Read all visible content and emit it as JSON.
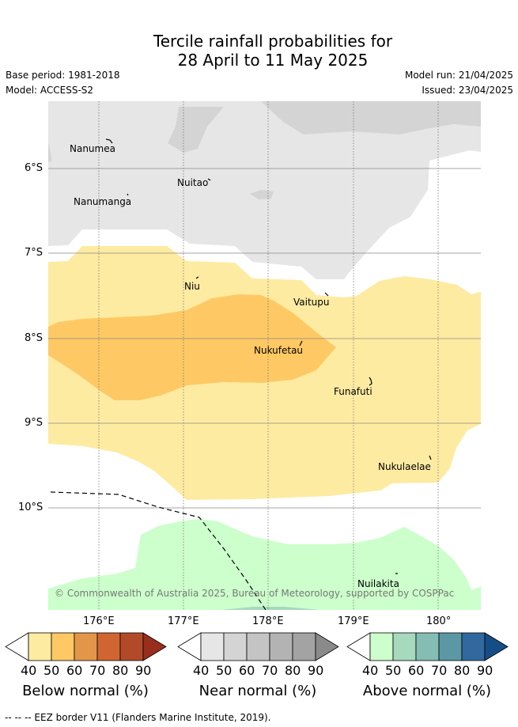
{
  "title": {
    "line1": "Tercile rainfall probabilities for",
    "line2": "28 April to 11 May 2025"
  },
  "meta": {
    "base_period": "Base period: 1981-2018",
    "model": "Model: ACCESS-S2",
    "model_run": "Model run: 21/04/2025",
    "issued": "Issued: 23/04/2025"
  },
  "map": {
    "lat_labels": [
      "6°S",
      "7°S",
      "8°S",
      "9°S",
      "10°S"
    ],
    "lon_labels": [
      "176°E",
      "177°E",
      "178°E",
      "179°E",
      "180°"
    ],
    "places": [
      "Nanumea",
      "Nuitao",
      "Nanumanga",
      "Niu",
      "Vaitupu",
      "Nukufetau",
      "Funafuti",
      "Nukulaelae",
      "Nuilakita"
    ],
    "copyright": "© Commonwealth of Australia 2025, Bureau of Meteorology, supported by COSPPac"
  },
  "colorbars": [
    {
      "title": "Below normal (%)",
      "ticks": [
        "40",
        "50",
        "60",
        "70",
        "80",
        "90"
      ],
      "colors": [
        "#ffffff",
        "#feeba2",
        "#fec964",
        "#e3964a",
        "#cf6631",
        "#b24a2a",
        "#9a2e1d"
      ]
    },
    {
      "title": "Near normal (%)",
      "ticks": [
        "40",
        "50",
        "60",
        "70",
        "80",
        "90"
      ],
      "colors": [
        "#ffffff",
        "#e6e6e6",
        "#d4d4d4",
        "#c4c4c4",
        "#b3b3b3",
        "#a3a3a3",
        "#8a8a8a"
      ]
    },
    {
      "title": "Above normal (%)",
      "ticks": [
        "40",
        "50",
        "60",
        "70",
        "80",
        "90"
      ],
      "colors": [
        "#ffffff",
        "#ccffcc",
        "#a6d9bd",
        "#85bdb5",
        "#5b98a3",
        "#31699f",
        "#154d86"
      ]
    }
  ],
  "footer": "-- -- -- EEZ border V11 (Flanders Marine Institute, 2019)."
}
